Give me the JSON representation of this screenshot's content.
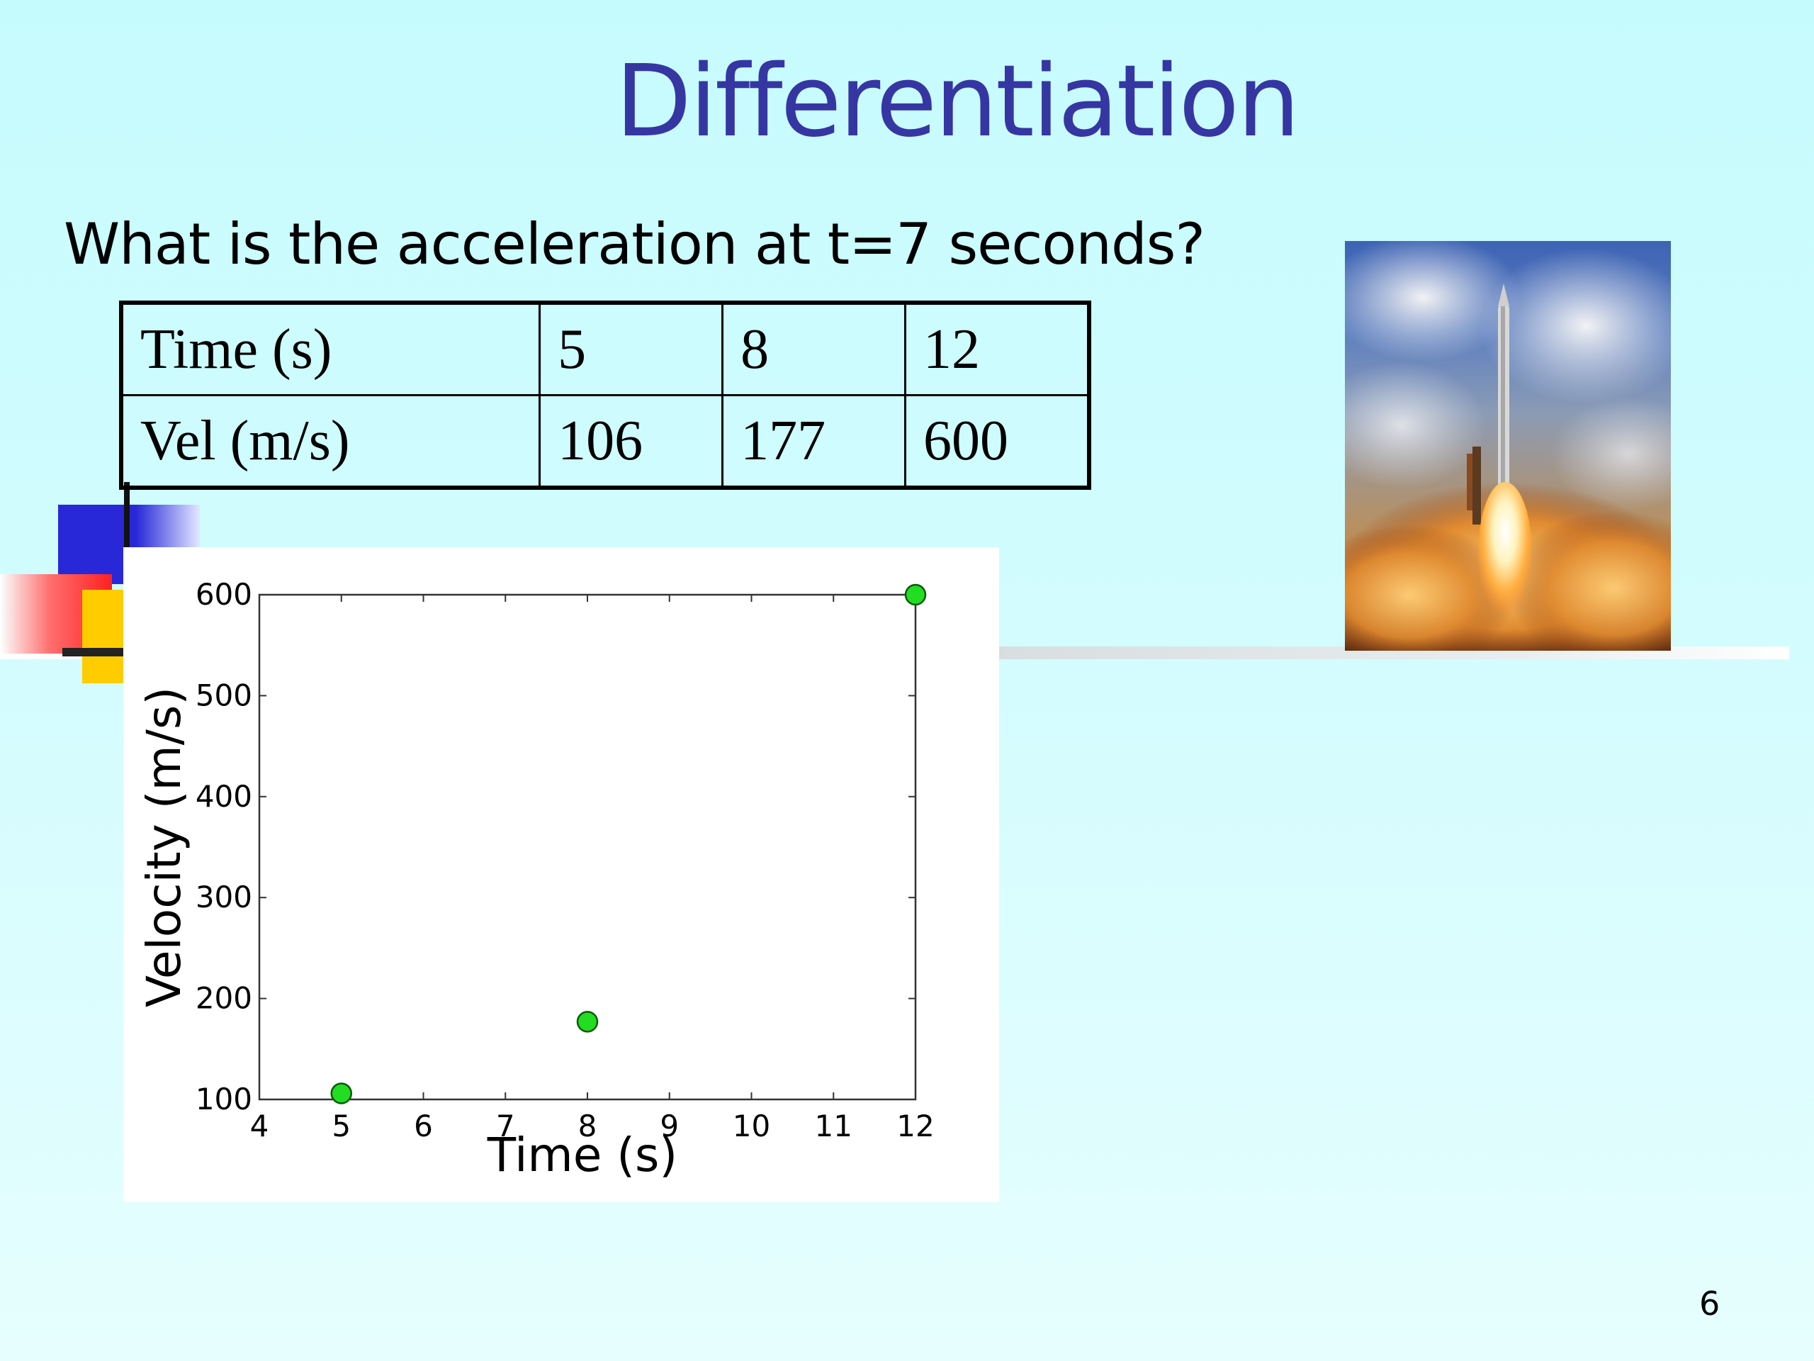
{
  "slide": {
    "title": "Differentiation",
    "question": "What is the acceleration at t=7 seconds?",
    "page_number": "6"
  },
  "table": {
    "rows": [
      {
        "header": "Time (s)",
        "values": [
          "5",
          "8",
          "12"
        ]
      },
      {
        "header": "Vel (m/s)",
        "values": [
          "106",
          "177",
          "600"
        ]
      }
    ]
  },
  "chart_data": {
    "type": "scatter",
    "title": "",
    "xlabel": "Time (s)",
    "ylabel": "Velocity (m/s)",
    "x": [
      5,
      8,
      12
    ],
    "y": [
      106,
      177,
      600
    ],
    "xlim": [
      4,
      12
    ],
    "ylim": [
      100,
      600
    ],
    "xticks": [
      "4",
      "5",
      "6",
      "7",
      "8",
      "9",
      "10",
      "11",
      "12"
    ],
    "yticks": [
      "100",
      "200",
      "300",
      "400",
      "500",
      "600"
    ],
    "grid": false,
    "legend": "none",
    "marker_color": "#22dd22"
  },
  "colors": {
    "title": "#3636a3",
    "background": "#c6fbfd",
    "marker": "#22dd22"
  },
  "image": {
    "icon": "rocket-launch-photo"
  }
}
